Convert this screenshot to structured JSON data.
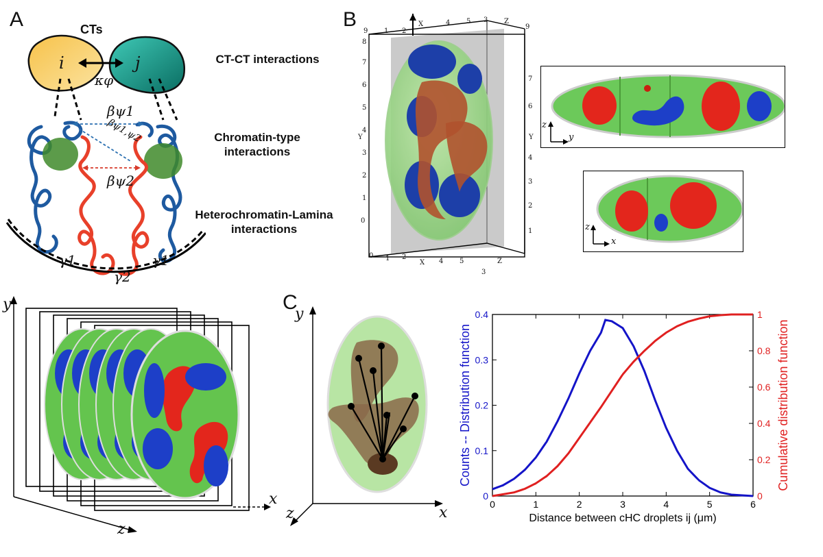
{
  "panels": {
    "a": "A",
    "b": "B",
    "c": "C"
  },
  "panel_a": {
    "cts_title": "CTs",
    "ct_i": "i",
    "ct_j": "j",
    "kappa": "κφ",
    "beta1": "βψ1",
    "beta12": "βψ1,ψ2",
    "beta2": "βψ2",
    "gamma1_left": "γ1",
    "gamma1_right": "γ1",
    "gamma2": "γ2",
    "label_ct": "CT-CT interactions",
    "label_chromatin": "Chromatin-type interactions",
    "label_hetero": "Heterochromatin-Lamina interactions"
  },
  "panel_b": {
    "box_ticks_xy": [
      "0",
      "1",
      "2",
      "3",
      "4",
      "5",
      "6",
      "7",
      "8",
      "9"
    ],
    "axis_x": "X",
    "axis_y": "Y",
    "axis_z": "Z",
    "slice1_axes": {
      "v": "z",
      "h": "y"
    },
    "slice2_axes": {
      "v": "z",
      "h": "x"
    }
  },
  "stack_axes": {
    "x": "x",
    "y": "y",
    "z": "z"
  },
  "panel_c": {
    "axis_x": "x",
    "axis_y": "y",
    "axis_z": "z"
  },
  "chart_data": {
    "type": "line",
    "xlabel": "Distance between cHC droplets ij (μm)",
    "ylabel_left": "Counts -- Distribution function",
    "ylabel_right": "Cumulative distribution function",
    "xlim": [
      0,
      6
    ],
    "ylim_left": [
      0,
      0.4
    ],
    "ylim_right": [
      0,
      1
    ],
    "x_ticks": [
      "0",
      "1",
      "2",
      "3",
      "4",
      "5",
      "6"
    ],
    "y_left_ticks": [
      "0",
      "0.1",
      "0.2",
      "0.3",
      "0.4"
    ],
    "y_right_ticks": [
      "0",
      "0.2",
      "0.4",
      "0.6",
      "0.8",
      "1"
    ],
    "series": [
      {
        "name": "Distribution function",
        "axis": "left",
        "color": "#1414c8",
        "x": [
          0,
          0.25,
          0.5,
          0.75,
          1.0,
          1.25,
          1.5,
          1.75,
          2.0,
          2.25,
          2.5,
          2.6,
          2.75,
          3.0,
          3.25,
          3.5,
          3.75,
          4.0,
          4.25,
          4.5,
          4.75,
          5.0,
          5.25,
          5.5,
          6.0
        ],
        "y": [
          0.015,
          0.024,
          0.038,
          0.058,
          0.085,
          0.12,
          0.165,
          0.215,
          0.27,
          0.32,
          0.36,
          0.388,
          0.385,
          0.37,
          0.33,
          0.275,
          0.21,
          0.15,
          0.1,
          0.06,
          0.035,
          0.018,
          0.008,
          0.003,
          0.0
        ]
      },
      {
        "name": "Cumulative distribution function",
        "axis": "right",
        "color": "#e02020",
        "x": [
          0,
          0.5,
          0.75,
          1.0,
          1.25,
          1.5,
          1.75,
          2.0,
          2.25,
          2.5,
          2.75,
          3.0,
          3.25,
          3.5,
          3.75,
          4.0,
          4.25,
          4.5,
          4.75,
          5.0,
          5.25,
          5.5,
          6.0
        ],
        "y": [
          0.0,
          0.02,
          0.04,
          0.07,
          0.11,
          0.165,
          0.235,
          0.32,
          0.405,
          0.49,
          0.58,
          0.67,
          0.74,
          0.8,
          0.855,
          0.9,
          0.935,
          0.96,
          0.977,
          0.99,
          0.996,
          1.0,
          1.0
        ]
      }
    ]
  }
}
